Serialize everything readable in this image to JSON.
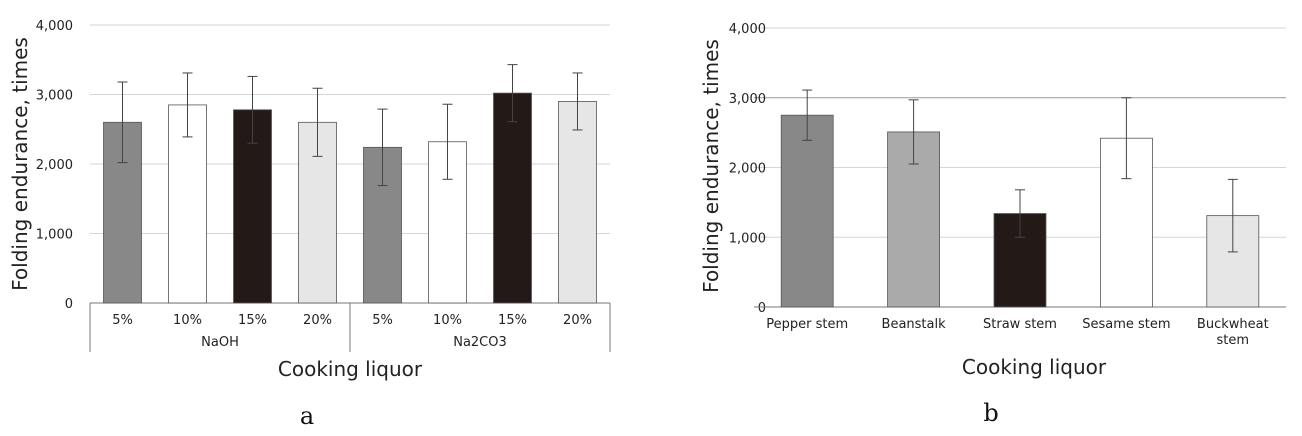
{
  "chart_data": [
    {
      "type": "bar",
      "panel_label": "a",
      "ylabel": "Folding endurance, times",
      "xlabel": "Cooking liquor",
      "ylim": [
        0,
        4000
      ],
      "yticks": [
        "0",
        "1,000",
        "2,000",
        "3,000",
        "4,000"
      ],
      "grid": true,
      "groups": [
        {
          "label": "NaOH",
          "categories": [
            "5%",
            "10%",
            "15%",
            "20%"
          ]
        },
        {
          "label": "Na2CO3",
          "categories": [
            "5%",
            "10%",
            "15%",
            "20%"
          ]
        }
      ],
      "values": [
        2600,
        2850,
        2780,
        2600,
        2240,
        2320,
        3020,
        2900
      ],
      "errors": [
        580,
        460,
        480,
        490,
        550,
        540,
        410,
        410
      ],
      "bar_colors": [
        "#888888",
        "#ffffff",
        "#231a17",
        "#e6e6e6",
        "#888888",
        "#ffffff",
        "#231a17",
        "#e6e6e6"
      ]
    },
    {
      "type": "bar",
      "panel_label": "b",
      "ylabel": "Folding endurance, times",
      "xlabel": "Cooking liquor",
      "ylim": [
        0,
        4000
      ],
      "yticks": [
        "0",
        "1,000",
        "2,000",
        "3,000",
        "4,000"
      ],
      "grid": true,
      "categories": [
        "Pepper stem",
        "Beanstalk",
        "Straw stem",
        "Sesame stem",
        "Buckwheat stem"
      ],
      "category_lines": [
        [
          "Pepper stem"
        ],
        [
          "Beanstalk"
        ],
        [
          "Straw stem"
        ],
        [
          "Sesame stem"
        ],
        [
          "Buckwheat",
          "stem"
        ]
      ],
      "values": [
        2750,
        2510,
        1340,
        2420,
        1310
      ],
      "errors": [
        360,
        460,
        340,
        580,
        520
      ],
      "bar_colors": [
        "#888888",
        "#aaaaaa",
        "#231a17",
        "#ffffff",
        "#e6e6e6"
      ]
    }
  ]
}
